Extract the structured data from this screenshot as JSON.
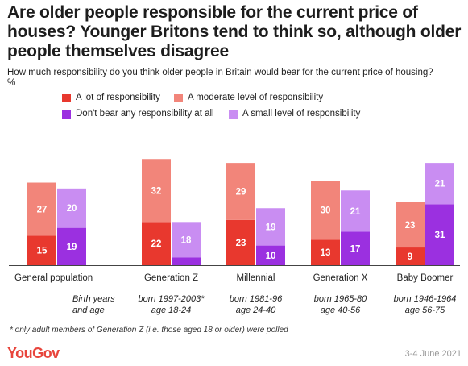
{
  "title": "Are older people responsible for the current price of houses? Younger Britons tend to think so, although older people themselves disagree",
  "subtitle": "How much responsibility do you think older people in Britain would bear for the current price of housing?",
  "unit": "%",
  "legend": [
    {
      "label": "A lot of responsibility",
      "color": "#e8382e"
    },
    {
      "label": "A moderate level of responsibility",
      "color": "#f2857a"
    },
    {
      "label": "Don't bear any responsibility at all",
      "color": "#9b30e0"
    },
    {
      "label": "A small level of responsibility",
      "color": "#c98df2"
    }
  ],
  "chart_data": {
    "type": "bar",
    "stacked": true,
    "categories": [
      "General population",
      "Generation Z",
      "Millennial",
      "Generation X",
      "Baby Boomer"
    ],
    "birth_row_label": [
      "Birth years",
      "and age"
    ],
    "birth_info": [
      [
        "",
        ""
      ],
      [
        "born 1997-2003*",
        "age 18-24"
      ],
      [
        "born 1981-96",
        "age 24-40"
      ],
      [
        "born 1965-80",
        "age 40-56"
      ],
      [
        "born 1946-1964",
        "age 56-75"
      ]
    ],
    "stacks": [
      {
        "name": "responsibility",
        "series": [
          {
            "name": "A lot of responsibility",
            "values": [
              15,
              22,
              23,
              13,
              9
            ]
          },
          {
            "name": "A moderate level of responsibility",
            "values": [
              27,
              32,
              29,
              30,
              23
            ]
          }
        ]
      },
      {
        "name": "no responsibility",
        "series": [
          {
            "name": "Don't bear any responsibility at all",
            "values": [
              19,
              4,
              10,
              17,
              31
            ]
          },
          {
            "name": "A small level of responsibility",
            "values": [
              20,
              18,
              19,
              21,
              21
            ]
          }
        ]
      }
    ],
    "data_labels": [
      {
        "series": "A lot of responsibility",
        "labels": [
          "15",
          "22",
          "23",
          "13",
          "9"
        ]
      },
      {
        "series": "A moderate level of responsibility",
        "labels": [
          "27",
          "32",
          "29",
          "30",
          "23"
        ]
      },
      {
        "series": "Don't bear any responsibility at all",
        "labels": [
          "19",
          "",
          "10",
          "17",
          "31"
        ]
      },
      {
        "series": "A small level of responsibility",
        "labels": [
          "20",
          "18",
          "19",
          "21",
          "21"
        ]
      }
    ],
    "ylim": [
      0,
      55
    ],
    "grid": false,
    "legend_position": "top-center"
  },
  "footnote": "* only adult members of Generation Z (i.e. those aged 18 or older) were polled",
  "logo_text": "YouGov",
  "date": "3-4 June 2021"
}
